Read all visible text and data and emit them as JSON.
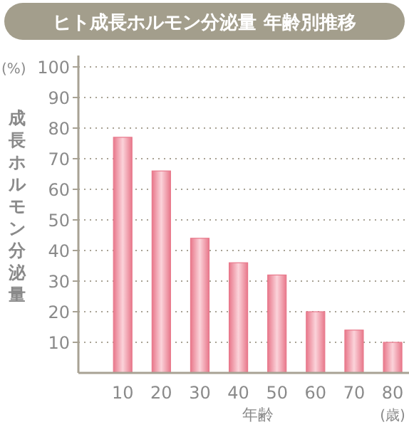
{
  "chart_data": {
    "type": "bar",
    "title": "ヒト成長ホルモン分泌量 年齢別推移",
    "ylabel": "成長ホルモン分泌量",
    "xlabel": "年齢",
    "annotations": [
      "(%)",
      "(歳)"
    ],
    "categories": [
      "10",
      "20",
      "30",
      "40",
      "50",
      "60",
      "70",
      "80"
    ],
    "values": [
      77,
      66,
      44,
      36,
      32,
      20,
      14,
      10
    ],
    "color": "#e8788b",
    "ylim": [
      0,
      100
    ],
    "yticks": [
      10,
      20,
      30,
      40,
      50,
      60,
      70,
      80,
      90,
      100
    ],
    "grid": "y"
  }
}
